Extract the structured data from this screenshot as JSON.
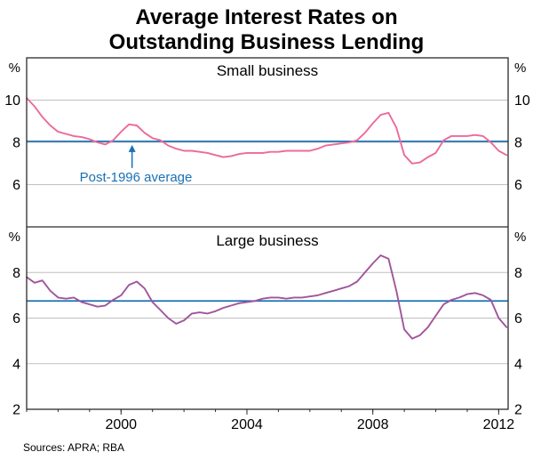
{
  "title": {
    "line1": "Average Interest Rates on",
    "line2": "Outstanding Business Lending"
  },
  "sources": "Sources: APRA; RBA",
  "colors": {
    "small_business_line": "#ec6a9c",
    "large_business_line": "#a0559b",
    "average_line": "#1971b5",
    "annotation_text": "#1971b5",
    "gridline": "#c0c0c0",
    "frame": "#2b2b2b",
    "axis_text": "#000000"
  },
  "x_axis": {
    "range": [
      1997.0,
      2012.3
    ],
    "ticks": [
      2000,
      2004,
      2008,
      2012
    ],
    "minor_tick_years": [
      1997,
      1998,
      1999,
      2000,
      2001,
      2002,
      2003,
      2004,
      2005,
      2006,
      2007,
      2008,
      2009,
      2010,
      2011,
      2012
    ]
  },
  "chart_data": [
    {
      "type": "line",
      "panel": "top",
      "title": "Small business",
      "unit": "%",
      "ylim": [
        4,
        12
      ],
      "yticks": [
        6,
        8,
        10
      ],
      "x_start": 1997.0,
      "x_step": 0.25,
      "average": {
        "label": "Post-1996 average",
        "value": 8.05
      },
      "annotation": {
        "text": "Post-1996 average",
        "x_year": 2000.35,
        "points_to_value": 8.05
      },
      "series": [
        {
          "name": "Small business",
          "color": "#ec6a9c",
          "values": [
            10.1,
            9.7,
            9.2,
            8.8,
            8.5,
            8.4,
            8.3,
            8.25,
            8.15,
            8.0,
            7.9,
            8.1,
            8.5,
            8.85,
            8.8,
            8.45,
            8.2,
            8.1,
            7.85,
            7.7,
            7.6,
            7.6,
            7.55,
            7.5,
            7.4,
            7.3,
            7.35,
            7.45,
            7.5,
            7.5,
            7.5,
            7.55,
            7.55,
            7.6,
            7.6,
            7.6,
            7.6,
            7.7,
            7.85,
            7.9,
            7.95,
            8.0,
            8.1,
            8.45,
            8.9,
            9.3,
            9.4,
            8.7,
            7.4,
            7.0,
            7.05,
            7.3,
            7.5,
            8.1,
            8.3,
            8.3,
            8.3,
            8.35,
            8.3,
            8.0,
            7.6,
            7.4
          ]
        }
      ]
    },
    {
      "type": "line",
      "panel": "bottom",
      "title": "Large business",
      "unit": "%",
      "ylim": [
        2,
        10
      ],
      "yticks": [
        2,
        4,
        6,
        8
      ],
      "x_start": 1997.0,
      "x_step": 0.25,
      "average": {
        "label": "Post-1996 average",
        "value": 6.75
      },
      "series": [
        {
          "name": "Large business",
          "color": "#a0559b",
          "values": [
            7.8,
            7.55,
            7.65,
            7.2,
            6.9,
            6.85,
            6.9,
            6.7,
            6.6,
            6.5,
            6.55,
            6.8,
            7.0,
            7.45,
            7.6,
            7.3,
            6.7,
            6.35,
            6.0,
            5.75,
            5.9,
            6.2,
            6.25,
            6.2,
            6.3,
            6.45,
            6.55,
            6.65,
            6.7,
            6.75,
            6.85,
            6.9,
            6.9,
            6.85,
            6.9,
            6.9,
            6.95,
            7.0,
            7.1,
            7.2,
            7.3,
            7.4,
            7.6,
            8.0,
            8.4,
            8.75,
            8.6,
            7.2,
            5.5,
            5.1,
            5.25,
            5.6,
            6.1,
            6.6,
            6.8,
            6.9,
            7.05,
            7.1,
            7.0,
            6.8,
            6.0,
            5.6
          ]
        }
      ]
    }
  ]
}
